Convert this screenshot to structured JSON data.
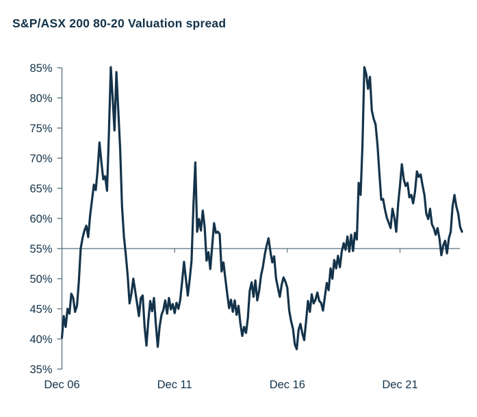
{
  "title": "S&P/ASX 200 80-20 Valuation spread",
  "colors": {
    "line": "#14334a",
    "text": "#123249",
    "axis": "#56707f",
    "background": "#ffffff"
  },
  "chart_data": {
    "type": "line",
    "title": "S&P/ASX 200 80-20 Valuation spread",
    "grid": false,
    "legend": "none",
    "ylim": [
      35,
      85
    ],
    "y_axis": {
      "min": 35,
      "max": 85,
      "step": 5,
      "tick_format": "percent"
    },
    "x_axis": {
      "tick_labels": [
        "Dec 06",
        "Dec 11",
        "Dec 16",
        "Dec 21"
      ],
      "tick_label_indices": [
        0,
        60,
        120,
        180
      ],
      "minor_tick_indices": [
        60,
        120,
        180
      ]
    },
    "reference_line": {
      "value": 55
    },
    "series": [
      {
        "name": "S&P/ASX 200 80-20 Valuation spread",
        "values": [
          40.2,
          43.8,
          42.0,
          45.0,
          44.2,
          47.5,
          46.8,
          44.5,
          45.5,
          49.5,
          55.0,
          56.8,
          58.0,
          58.8,
          56.9,
          60.5,
          63.0,
          65.6,
          64.7,
          68.0,
          72.6,
          69.4,
          66.5,
          67.0,
          64.6,
          74.0,
          85.1,
          80.0,
          74.6,
          84.3,
          78.0,
          71.5,
          62.0,
          57.0,
          54.0,
          50.5,
          45.9,
          47.5,
          50.0,
          48.0,
          45.9,
          43.8,
          46.8,
          47.2,
          42.0,
          38.9,
          43.0,
          46.3,
          44.6,
          46.8,
          42.5,
          38.7,
          42.0,
          44.0,
          44.8,
          46.4,
          44.2,
          46.8,
          44.9,
          45.8,
          44.3,
          46.0,
          45.0,
          46.5,
          49.5,
          52.8,
          50.0,
          47.2,
          49.8,
          53.0,
          62.0,
          69.3,
          57.8,
          59.9,
          58.0,
          61.3,
          58.5,
          53.0,
          54.4,
          51.6,
          55.5,
          59.2,
          57.6,
          57.8,
          57.4,
          51.2,
          52.7,
          50.0,
          47.5,
          45.1,
          46.5,
          44.5,
          46.4,
          44.0,
          45.5,
          42.6,
          40.5,
          42.0,
          41.0,
          43.5,
          48.0,
          49.4,
          47.0,
          49.7,
          46.4,
          48.0,
          50.5,
          52.0,
          54.0,
          55.5,
          56.7,
          54.5,
          52.7,
          53.7,
          50.0,
          48.5,
          47.0,
          49.0,
          50.2,
          49.5,
          48.5,
          44.7,
          43.0,
          41.7,
          39.1,
          38.3,
          41.5,
          42.5,
          40.9,
          39.8,
          43.0,
          46.3,
          44.5,
          47.4,
          45.9,
          46.5,
          47.7,
          46.3,
          46.0,
          44.7,
          47.0,
          49.3,
          48.1,
          51.7,
          50.0,
          53.1,
          51.7,
          53.8,
          51.9,
          54.5,
          55.9,
          54.8,
          57.0,
          54.5,
          57.3,
          54.6,
          57.6,
          56.5,
          65.9,
          63.9,
          72.0,
          85.1,
          84.0,
          81.5,
          83.5,
          77.9,
          76.5,
          75.6,
          72.2,
          67.6,
          63.1,
          63.2,
          61.5,
          60.1,
          59.3,
          58.4,
          61.6,
          60.1,
          57.8,
          62.4,
          65.5,
          69.0,
          66.5,
          65.4,
          65.9,
          63.5,
          63.9,
          62.5,
          64.5,
          67.8,
          66.9,
          67.3,
          65.5,
          63.9,
          60.8,
          59.9,
          61.6,
          59.0,
          58.4,
          57.3,
          58.4,
          56.7,
          53.9,
          55.5,
          56.3,
          54.2,
          56.7,
          57.8,
          62.0,
          63.9,
          62.0,
          60.8,
          58.6,
          57.8
        ]
      }
    ]
  }
}
